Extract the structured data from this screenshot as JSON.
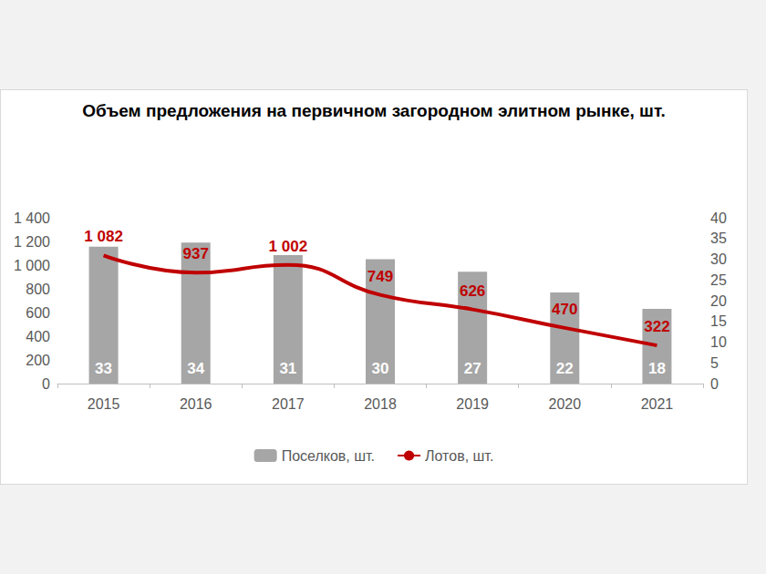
{
  "chart_data": {
    "type": "bar",
    "title": "Объем предложения на первичном загородном элитном рынке, шт.",
    "categories": [
      "2015",
      "2016",
      "2017",
      "2018",
      "2019",
      "2020",
      "2021"
    ],
    "series": [
      {
        "name": "Поселков, шт.",
        "type": "bar",
        "axis": "y2",
        "color": "#a6a6a6",
        "values": [
          33,
          34,
          31,
          30,
          27,
          22,
          18
        ]
      },
      {
        "name": "Лотов, шт.",
        "type": "line",
        "color": "#c00000",
        "line_style": "solid",
        "values": [
          1082,
          937,
          1002,
          749,
          626,
          470,
          322
        ],
        "value_labels": [
          "1 082",
          "937",
          "1 002",
          "749",
          "626",
          "470",
          "322"
        ]
      }
    ],
    "ylim": [
      0,
      1400
    ],
    "yticks": [
      0,
      200,
      400,
      600,
      800,
      {
        "value": 1000,
        "label": "1 000"
      },
      {
        "value": 1200,
        "label": "1 200"
      },
      {
        "value": 1400,
        "label": "1 400"
      }
    ],
    "y2lim": [
      0,
      40
    ],
    "y2ticks": [
      0,
      5,
      10,
      15,
      20,
      25,
      30,
      35,
      40
    ],
    "data_labels": true,
    "grid": false,
    "legend": "bottom"
  }
}
